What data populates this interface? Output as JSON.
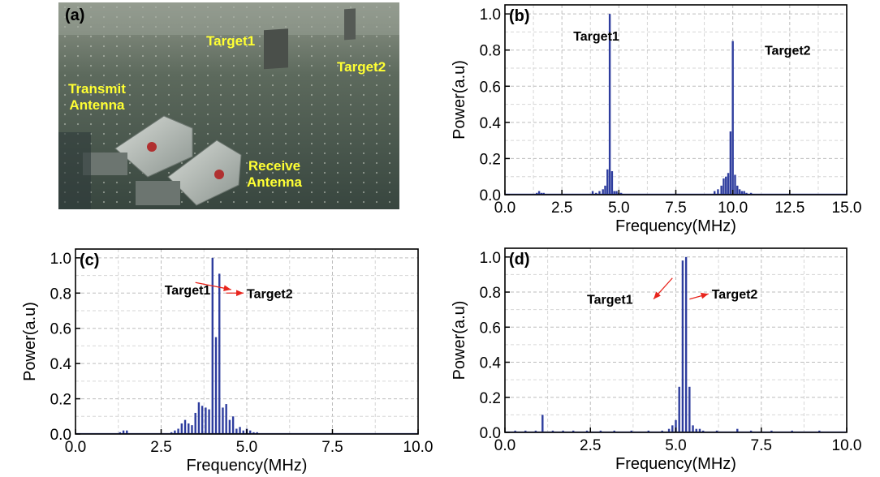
{
  "photo": {
    "panel_label": "(a)",
    "labels": {
      "target1": "Target1",
      "target2": "Target2",
      "transmit": [
        "Transmit",
        "Antenna"
      ],
      "receive": [
        "Receive",
        "Antenna"
      ]
    }
  },
  "chart_data": [
    {
      "panel_label": "(b)",
      "type": "bar",
      "xlabel": "Frequency(MHz)",
      "ylabel": "Power(a.u)",
      "xlim": [
        0,
        15
      ],
      "ylim": [
        0,
        1.05
      ],
      "xticks": [
        "0.0",
        "2.5",
        "5.0",
        "7.5",
        "10.0",
        "12.5",
        "15.0"
      ],
      "yticks": [
        "0.0",
        "0.2",
        "0.4",
        "0.6",
        "0.8",
        "1.0"
      ],
      "grid": true,
      "series_color": "#2e3d9e",
      "x": [
        1.4,
        1.5,
        1.6,
        1.7,
        3.85,
        4.0,
        4.15,
        4.3,
        4.4,
        4.5,
        4.6,
        4.7,
        4.8,
        4.9,
        5.0,
        5.1,
        9.2,
        9.35,
        9.5,
        9.6,
        9.7,
        9.8,
        9.9,
        10.0,
        10.1,
        10.2,
        10.3,
        10.4,
        10.5,
        10.6,
        10.8
      ],
      "values": [
        0.01,
        0.02,
        0.01,
        0.01,
        0.02,
        0.01,
        0.02,
        0.03,
        0.05,
        0.14,
        1.0,
        0.13,
        0.02,
        0.02,
        0.01,
        0.01,
        0.02,
        0.03,
        0.05,
        0.09,
        0.1,
        0.12,
        0.35,
        0.85,
        0.11,
        0.05,
        0.03,
        0.02,
        0.02,
        0.01,
        0.01
      ],
      "annotations": [
        {
          "text": "Target1",
          "x": 3.0,
          "y": 0.88
        },
        {
          "text": "Target2",
          "x": 11.4,
          "y": 0.8
        }
      ]
    },
    {
      "panel_label": "(c)",
      "type": "bar",
      "xlabel": "Frequency(MHz)",
      "ylabel": "Power(a.u)",
      "xlim": [
        0,
        10
      ],
      "ylim": [
        0,
        1.05
      ],
      "xticks": [
        "0.0",
        "2.5",
        "5.0",
        "7.5",
        "10.0"
      ],
      "yticks": [
        "0.0",
        "0.2",
        "0.4",
        "0.6",
        "0.8",
        "1.0"
      ],
      "grid": true,
      "series_color": "#2e3d9e",
      "x": [
        1.3,
        1.4,
        1.5,
        2.8,
        2.9,
        3.0,
        3.1,
        3.2,
        3.3,
        3.4,
        3.5,
        3.6,
        3.7,
        3.8,
        3.9,
        4.0,
        4.1,
        4.2,
        4.3,
        4.4,
        4.5,
        4.6,
        4.7,
        4.8,
        4.9,
        5.0,
        5.1,
        5.2,
        5.3
      ],
      "values": [
        0.01,
        0.02,
        0.02,
        0.01,
        0.02,
        0.03,
        0.06,
        0.08,
        0.06,
        0.05,
        0.12,
        0.18,
        0.16,
        0.15,
        0.14,
        1.0,
        0.55,
        0.91,
        0.15,
        0.17,
        0.08,
        0.1,
        0.03,
        0.04,
        0.02,
        0.03,
        0.02,
        0.01,
        0.01
      ],
      "annotations": [
        {
          "text": "Target1",
          "x": 2.6,
          "y": 0.82,
          "arrow_to": [
            3.5,
            0.86
          ]
        },
        {
          "text": "Target2",
          "x": 5.0,
          "y": 0.8,
          "arrow_from": [
            4.4,
            0.8
          ]
        }
      ]
    },
    {
      "panel_label": "(d)",
      "type": "bar",
      "xlabel": "Frequency(MHz)",
      "ylabel": "Power(a.u)",
      "xlim": [
        0,
        10
      ],
      "ylim": [
        0,
        1.05
      ],
      "xticks": [
        "0.0",
        "2.5",
        "5.0",
        "7.5",
        "10.0"
      ],
      "yticks": [
        "0.0",
        "0.2",
        "0.4",
        "0.6",
        "0.8",
        "1.0"
      ],
      "grid": true,
      "series_color": "#2e3d9e",
      "x": [
        0.3,
        0.6,
        0.9,
        1.1,
        1.4,
        1.7,
        2.0,
        2.4,
        2.8,
        3.2,
        3.7,
        4.2,
        4.6,
        4.8,
        4.9,
        5.0,
        5.1,
        5.2,
        5.3,
        5.4,
        5.5,
        5.6,
        5.7,
        5.8,
        6.2,
        6.8,
        7.2,
        7.8,
        8.4,
        9.2
      ],
      "values": [
        0.01,
        0.01,
        0.01,
        0.1,
        0.01,
        0.01,
        0.01,
        0.01,
        0.01,
        0.01,
        0.01,
        0.01,
        0.01,
        0.02,
        0.04,
        0.07,
        0.26,
        0.98,
        1.0,
        0.26,
        0.04,
        0.02,
        0.02,
        0.01,
        0.01,
        0.02,
        0.01,
        0.01,
        0.01,
        0.01
      ],
      "annotations": [
        {
          "text": "Target1",
          "x": 2.4,
          "y": 0.76,
          "arrow_to": [
            4.9,
            0.88
          ]
        },
        {
          "text": "Target2",
          "x": 6.05,
          "y": 0.79,
          "arrow_from": [
            5.4,
            0.76
          ]
        }
      ]
    }
  ]
}
